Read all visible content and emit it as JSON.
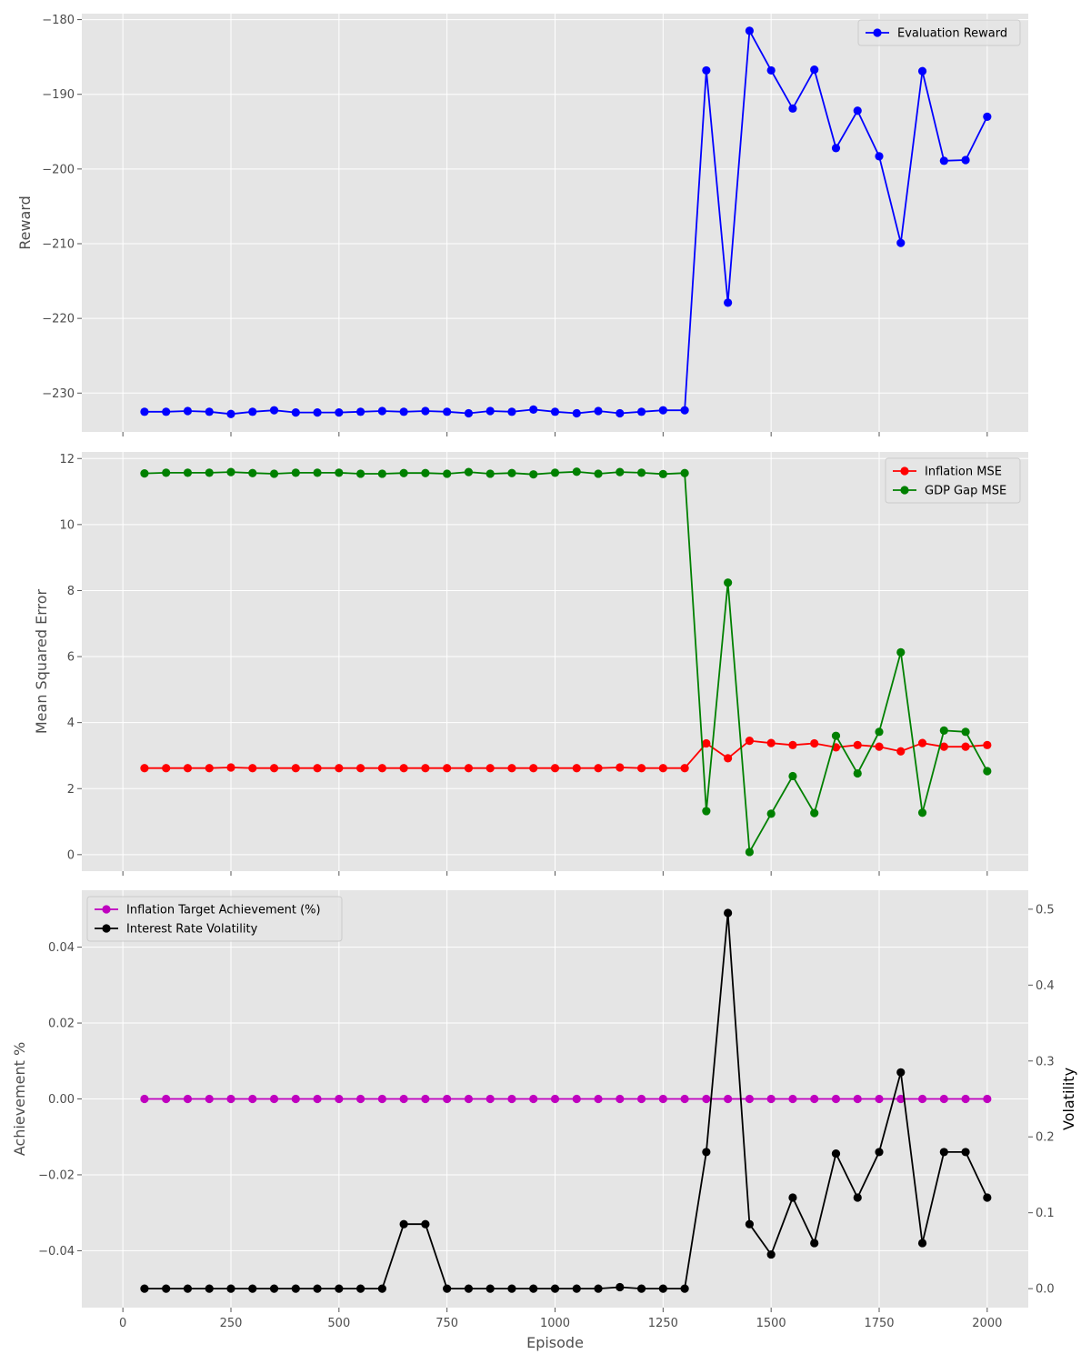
{
  "chart_data": [
    {
      "type": "line",
      "xlabel": "",
      "ylabel": "Reward",
      "xlim": [
        -95,
        2095
      ],
      "ylim": [
        -235.2,
        -179.2
      ],
      "xticks": [
        0,
        250,
        500,
        750,
        1000,
        1250,
        1500,
        1750,
        2000
      ],
      "yticks": [
        -230,
        -220,
        -210,
        -200,
        -190,
        -180
      ],
      "ytick_labels": [
        "−230",
        "−220",
        "−210",
        "−200",
        "−190",
        "−180"
      ],
      "show_xtick_labels": false,
      "grid": true,
      "legend_position": "top-right",
      "x": [
        50,
        100,
        150,
        200,
        250,
        300,
        350,
        400,
        450,
        500,
        550,
        600,
        650,
        700,
        750,
        800,
        850,
        900,
        950,
        1000,
        1050,
        1100,
        1150,
        1200,
        1250,
        1300,
        1350,
        1400,
        1450,
        1500,
        1550,
        1600,
        1650,
        1700,
        1750,
        1800,
        1850,
        1900,
        1950,
        2000
      ],
      "series": [
        {
          "name": "Evaluation Reward",
          "color": "#0000ff",
          "values": [
            -232.5,
            -232.5,
            -232.4,
            -232.5,
            -232.8,
            -232.5,
            -232.3,
            -232.6,
            -232.6,
            -232.6,
            -232.5,
            -232.4,
            -232.5,
            -232.4,
            -232.5,
            -232.7,
            -232.4,
            -232.5,
            -232.2,
            -232.5,
            -232.7,
            -232.4,
            -232.7,
            -232.5,
            -232.3,
            -232.3,
            -186.8,
            -217.9,
            -181.5,
            -186.8,
            -191.9,
            -186.7,
            -197.2,
            -192.2,
            -198.3,
            -209.9,
            -186.9,
            -198.9,
            -198.8,
            -193.0
          ]
        }
      ]
    },
    {
      "type": "line",
      "xlabel": "",
      "ylabel": "Mean Squared Error",
      "xlim": [
        -95,
        2095
      ],
      "ylim": [
        -0.5,
        12.2
      ],
      "xticks": [
        0,
        250,
        500,
        750,
        1000,
        1250,
        1500,
        1750,
        2000
      ],
      "yticks": [
        0,
        2,
        4,
        6,
        8,
        10,
        12
      ],
      "ytick_labels": [
        "0",
        "2",
        "4",
        "6",
        "8",
        "10",
        "12"
      ],
      "show_xtick_labels": false,
      "grid": true,
      "legend_position": "top-right",
      "x": [
        50,
        100,
        150,
        200,
        250,
        300,
        350,
        400,
        450,
        500,
        550,
        600,
        650,
        700,
        750,
        800,
        850,
        900,
        950,
        1000,
        1050,
        1100,
        1150,
        1200,
        1250,
        1300,
        1350,
        1400,
        1450,
        1500,
        1550,
        1600,
        1650,
        1700,
        1750,
        1800,
        1850,
        1900,
        1950,
        2000
      ],
      "series": [
        {
          "name": "Inflation MSE",
          "color": "#ff0000",
          "values": [
            2.62,
            2.62,
            2.62,
            2.62,
            2.64,
            2.62,
            2.62,
            2.62,
            2.62,
            2.62,
            2.62,
            2.62,
            2.62,
            2.62,
            2.62,
            2.62,
            2.62,
            2.62,
            2.62,
            2.62,
            2.62,
            2.62,
            2.64,
            2.62,
            2.62,
            2.62,
            3.37,
            2.92,
            3.45,
            3.38,
            3.32,
            3.37,
            3.25,
            3.32,
            3.27,
            3.13,
            3.38,
            3.27,
            3.27,
            3.32
          ]
        },
        {
          "name": "GDP Gap MSE",
          "color": "#008000",
          "values": [
            11.55,
            11.57,
            11.57,
            11.57,
            11.59,
            11.56,
            11.54,
            11.57,
            11.57,
            11.57,
            11.54,
            11.54,
            11.56,
            11.56,
            11.54,
            11.59,
            11.54,
            11.56,
            11.52,
            11.57,
            11.6,
            11.54,
            11.59,
            11.57,
            11.53,
            11.56,
            1.32,
            8.24,
            0.08,
            1.24,
            2.38,
            1.26,
            3.6,
            2.46,
            3.72,
            6.13,
            1.27,
            3.76,
            3.72,
            2.53
          ]
        }
      ]
    },
    {
      "type": "line",
      "xlabel": "Episode",
      "ylabel": "Achievement %",
      "y2label": "Volatility",
      "xlim": [
        -95,
        2095
      ],
      "ylim": [
        -0.055,
        0.055
      ],
      "y2lim": [
        -0.025,
        0.525
      ],
      "xticks": [
        0,
        250,
        500,
        750,
        1000,
        1250,
        1500,
        1750,
        2000
      ],
      "xtick_labels": [
        "0",
        "250",
        "500",
        "750",
        "1000",
        "1250",
        "1500",
        "1750",
        "2000"
      ],
      "yticks": [
        -0.04,
        -0.02,
        0.0,
        0.02,
        0.04
      ],
      "ytick_labels": [
        "−0.04",
        "−0.02",
        "0.00",
        "0.02",
        "0.04"
      ],
      "y2ticks": [
        0.0,
        0.1,
        0.2,
        0.3,
        0.4,
        0.5
      ],
      "y2tick_labels": [
        "0.0",
        "0.1",
        "0.2",
        "0.3",
        "0.4",
        "0.5"
      ],
      "show_xtick_labels": true,
      "grid": true,
      "legend_position": "top-left",
      "x": [
        50,
        100,
        150,
        200,
        250,
        300,
        350,
        400,
        450,
        500,
        550,
        600,
        650,
        700,
        750,
        800,
        850,
        900,
        950,
        1000,
        1050,
        1100,
        1150,
        1200,
        1250,
        1300,
        1350,
        1400,
        1450,
        1500,
        1550,
        1600,
        1650,
        1700,
        1750,
        1800,
        1850,
        1900,
        1950,
        2000
      ],
      "series": [
        {
          "name": "Inflation Target Achievement (%)",
          "color": "#bf00bf",
          "axis": "left",
          "values": [
            0,
            0,
            0,
            0,
            0,
            0,
            0,
            0,
            0,
            0,
            0,
            0,
            0,
            0,
            0,
            0,
            0,
            0,
            0,
            0,
            0,
            0,
            0,
            0,
            0,
            0,
            0,
            0,
            0,
            0,
            0,
            0,
            0,
            0,
            0,
            0,
            0,
            0,
            0,
            0
          ]
        },
        {
          "name": "Interest Rate Volatility",
          "color": "#000000",
          "axis": "right",
          "values": [
            0,
            0,
            0,
            0,
            0,
            0,
            0,
            0,
            0,
            0,
            0,
            0,
            0.085,
            0.085,
            0,
            0,
            0,
            0,
            0,
            0,
            0,
            0,
            0.002,
            0,
            0,
            0,
            0.18,
            0.495,
            0.085,
            0.045,
            0.12,
            0.06,
            0.178,
            0.12,
            0.18,
            0.285,
            0.06,
            0.18,
            0.18,
            0.12
          ]
        }
      ]
    }
  ]
}
